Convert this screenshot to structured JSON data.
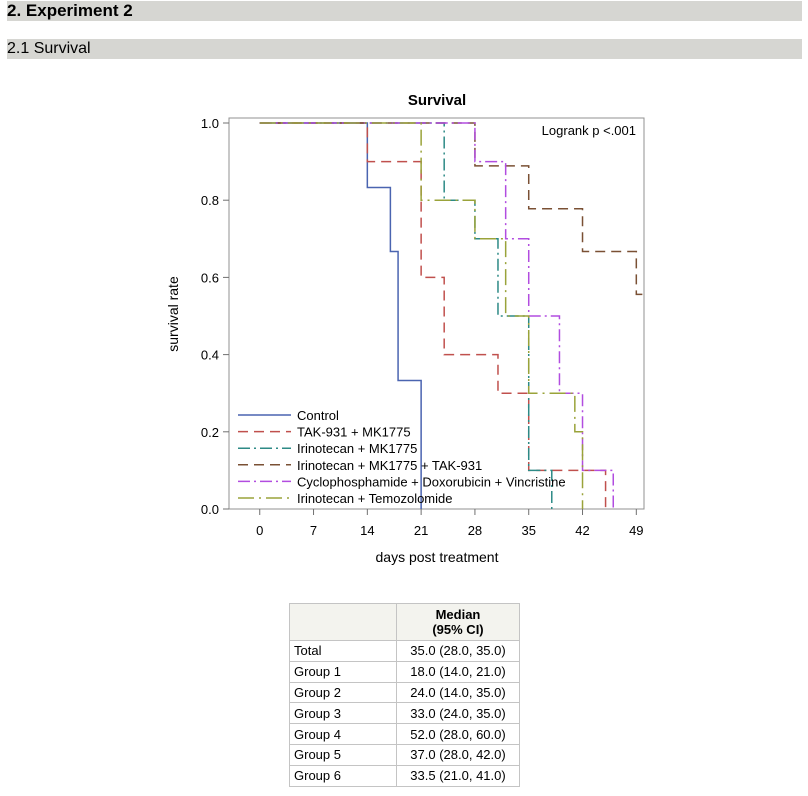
{
  "sections": {
    "h1": "2. Experiment 2",
    "h2": "2.1 Survival"
  },
  "chart_data": {
    "type": "line",
    "step": true,
    "title": "Survival",
    "xlabel": "days post treatment",
    "ylabel": "survival rate",
    "xlim": [
      -4,
      50
    ],
    "ylim": [
      0,
      1
    ],
    "xticks": [
      0,
      7,
      14,
      21,
      28,
      35,
      42,
      49
    ],
    "yticks": [
      "0.0",
      "0.2",
      "0.4",
      "0.6",
      "0.8",
      "1.0"
    ],
    "annotation": "Logrank p  <.001",
    "legend_position": "bottom-left",
    "series": [
      {
        "name": "Control",
        "color": "#4a64b0",
        "dash": "none",
        "x": [
          0,
          14,
          17,
          18,
          21
        ],
        "y": [
          1.0,
          0.833,
          0.667,
          0.333,
          0.0
        ]
      },
      {
        "name": "TAK-931 + MK1775",
        "color": "#c0504d",
        "dash": "long",
        "x": [
          0,
          14,
          21,
          24,
          31,
          35,
          45
        ],
        "y": [
          1.0,
          0.9,
          0.6,
          0.4,
          0.3,
          0.1,
          0.0
        ],
        "end_x": 45
      },
      {
        "name": "Irinotecan + MK1775",
        "color": "#2d8a86",
        "dash": "dashdot",
        "x": [
          0,
          24,
          28,
          31,
          35,
          38
        ],
        "y": [
          1.0,
          0.8,
          0.7,
          0.5,
          0.1,
          0.0
        ],
        "end_x": 38
      },
      {
        "name": "Irinotecan + MK1775 + TAK-931",
        "color": "#7a5034",
        "dash": "long",
        "x": [
          0,
          28,
          35,
          42,
          49
        ],
        "y": [
          1.0,
          0.889,
          0.778,
          0.667,
          0.556
        ],
        "end_x": 50
      },
      {
        "name": "Cyclophosphamide + Doxorubicin + Vincristine",
        "color": "#b24de0",
        "dash": "dashdot",
        "x": [
          0,
          28,
          32,
          35,
          39,
          42,
          46
        ],
        "y": [
          1.0,
          0.9,
          0.7,
          0.5,
          0.3,
          0.1,
          0.0
        ],
        "end_x": 46
      },
      {
        "name": "Irinotecan + Temozolomide",
        "color": "#9aa33a",
        "dash": "longdash",
        "x": [
          0,
          21,
          28,
          32,
          35,
          41,
          42
        ],
        "y": [
          1.0,
          0.8,
          0.7,
          0.5,
          0.3,
          0.2,
          0.0
        ],
        "end_x": 42
      }
    ]
  },
  "table": {
    "header": [
      "",
      "Median\n(95% CI)"
    ],
    "header_line1": "Median",
    "header_line2": "(95% CI)",
    "rows": [
      {
        "label": "Total",
        "value": "35.0 (28.0, 35.0)"
      },
      {
        "label": "Group 1",
        "value": "18.0 (14.0, 21.0)"
      },
      {
        "label": "Group 2",
        "value": "24.0 (14.0, 35.0)"
      },
      {
        "label": "Group 3",
        "value": "33.0 (24.0, 35.0)"
      },
      {
        "label": "Group 4",
        "value": "52.0 (28.0, 60.0)"
      },
      {
        "label": "Group 5",
        "value": "37.0 (28.0, 42.0)"
      },
      {
        "label": "Group 6",
        "value": "33.5 (21.0, 41.0)"
      }
    ]
  }
}
